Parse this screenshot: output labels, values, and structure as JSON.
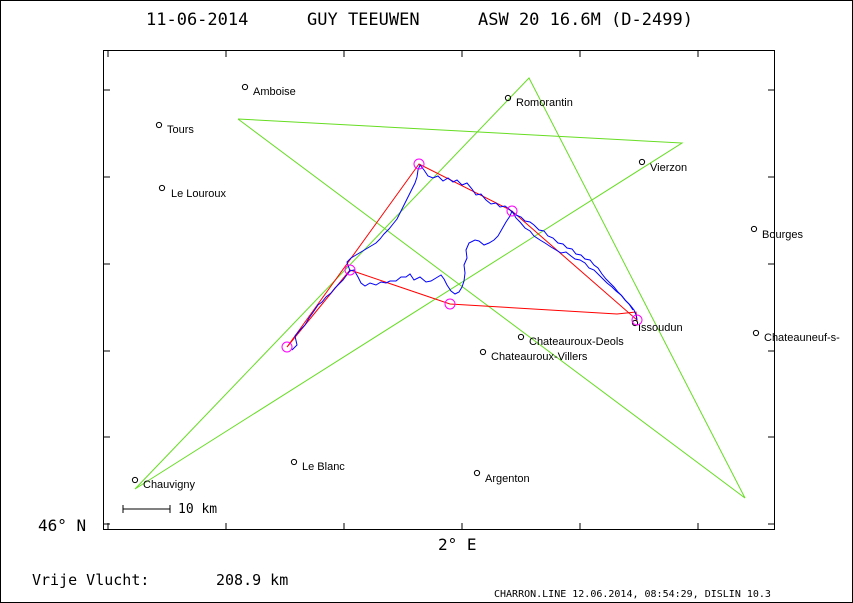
{
  "title": {
    "date": "11-06-2014",
    "pilot": "GUY TEEUWEN",
    "glider": "ASW 20 16.6M (D-2499)"
  },
  "axes": {
    "lat_label": "46° N",
    "lon_label": "2° E"
  },
  "scale": {
    "label": "10 km"
  },
  "footer": {
    "distance_label": "Vrije Vlucht:",
    "distance_value": "208.9 km",
    "file_info": "CHARRON.LINE 12.06.2014, 08:54:29, DISLIN 10.3"
  },
  "cities": [
    {
      "name": "Amboise"
    },
    {
      "name": "Romorantin"
    },
    {
      "name": "Tours"
    },
    {
      "name": "Vierzon"
    },
    {
      "name": "Le Louroux"
    },
    {
      "name": "Bourges"
    },
    {
      "name": "Issoudun"
    },
    {
      "name": "Chateauroux-Deols"
    },
    {
      "name": "Chateauneuf-s-"
    },
    {
      "name": "Chateauroux-Villers"
    },
    {
      "name": "Le Blanc"
    },
    {
      "name": "Argenton"
    },
    {
      "name": "Chauvigny"
    }
  ],
  "colors": {
    "task_line": "#ff0000",
    "track": "#0000ff",
    "turnpoint_circle": "#ff00ff",
    "green_lines": "#66dd22",
    "frame": "#000000"
  }
}
